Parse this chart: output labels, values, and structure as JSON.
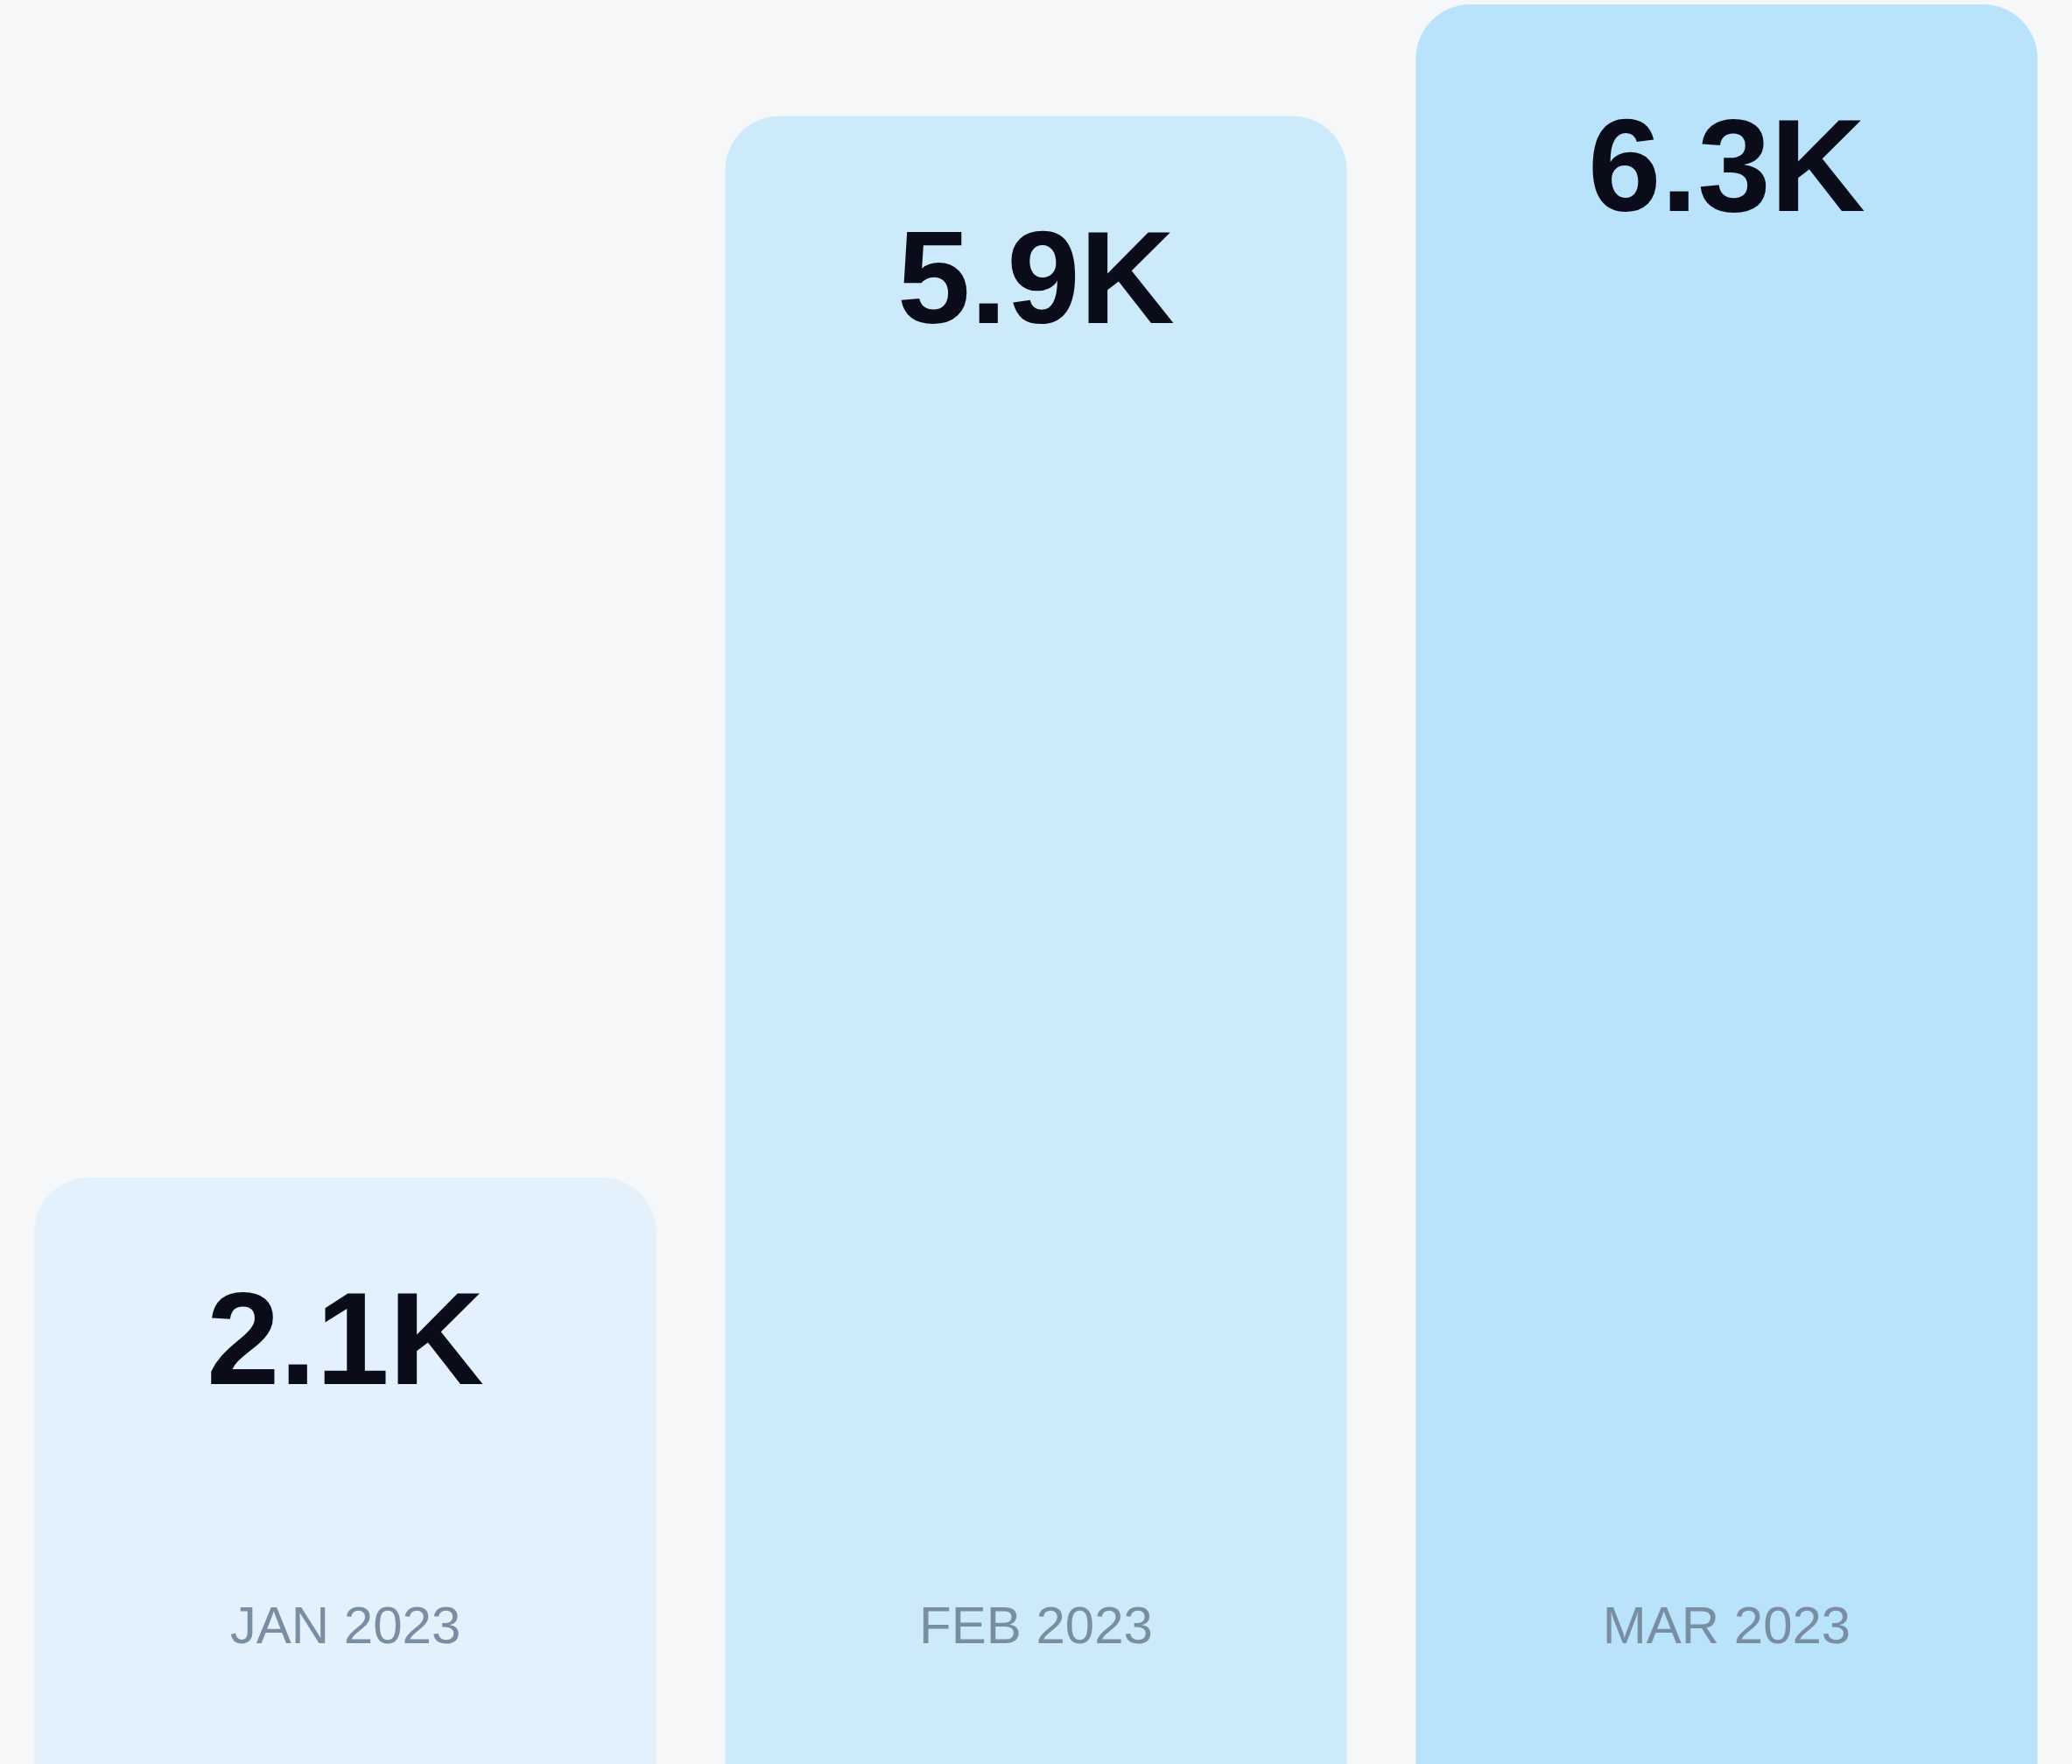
{
  "chart_data": {
    "type": "bar",
    "categories": [
      "JAN 2023",
      "FEB 2023",
      "MAR 2023"
    ],
    "values": [
      2.1,
      5.9,
      6.3
    ],
    "value_labels": [
      "2.1K",
      "5.9K",
      "6.3K"
    ],
    "colors": [
      "#e2f1fc",
      "#cdeafb",
      "#b9e3fa"
    ],
    "ylim": [
      0,
      6.3
    ],
    "legend": false,
    "tick_labels": "x"
  }
}
